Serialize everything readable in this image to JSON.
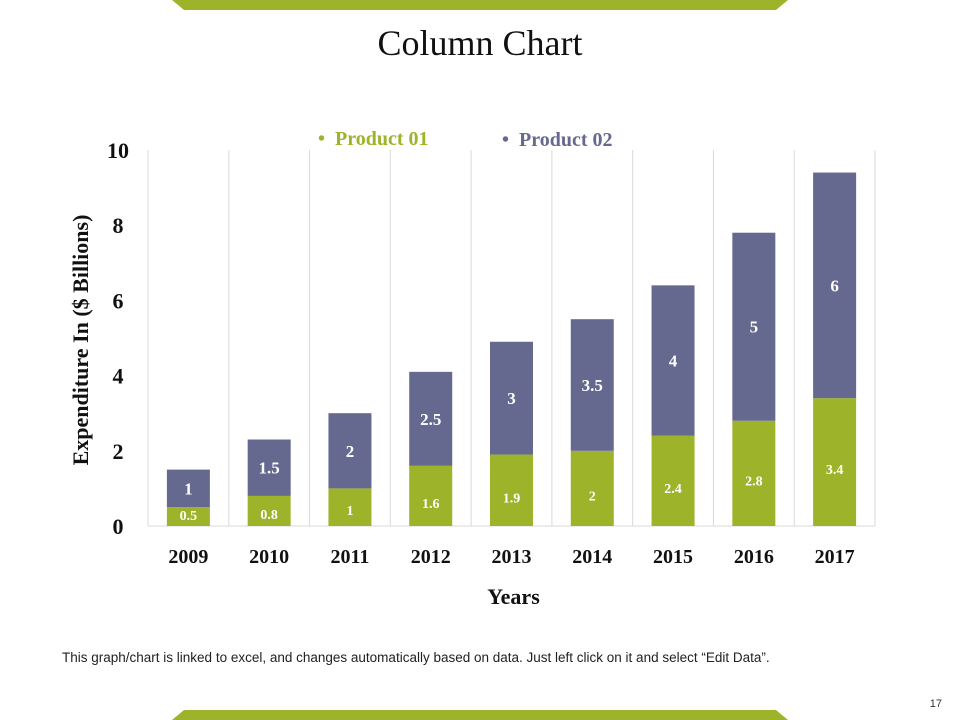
{
  "slide": {
    "title": "Column Chart",
    "note": "This graph/chart is linked to excel, and changes automatically based on data. Just left click on it and select “Edit Data”.",
    "page_number": "17",
    "accent_color": "#9db42a"
  },
  "chart_data": {
    "type": "bar",
    "stacked": true,
    "title": "",
    "xlabel": "Years",
    "ylabel": "Expenditure In ($ Billions)",
    "categories": [
      "2009",
      "2010",
      "2011",
      "2012",
      "2013",
      "2014",
      "2015",
      "2016",
      "2017"
    ],
    "series": [
      {
        "name": "Product 01",
        "color": "#9db42a",
        "values": [
          0.5,
          0.8,
          1,
          1.6,
          1.9,
          2,
          2.4,
          2.8,
          3.4
        ]
      },
      {
        "name": "Product 02",
        "color": "#66698f",
        "values": [
          1,
          1.5,
          2,
          2.5,
          3,
          3.5,
          4,
          5,
          6
        ]
      }
    ],
    "ylim": [
      0,
      10
    ],
    "yticks": [
      "0",
      "2",
      "4",
      "6",
      "8",
      "10"
    ],
    "grid": "vertical",
    "legend_position": "top",
    "data_labels": true
  }
}
